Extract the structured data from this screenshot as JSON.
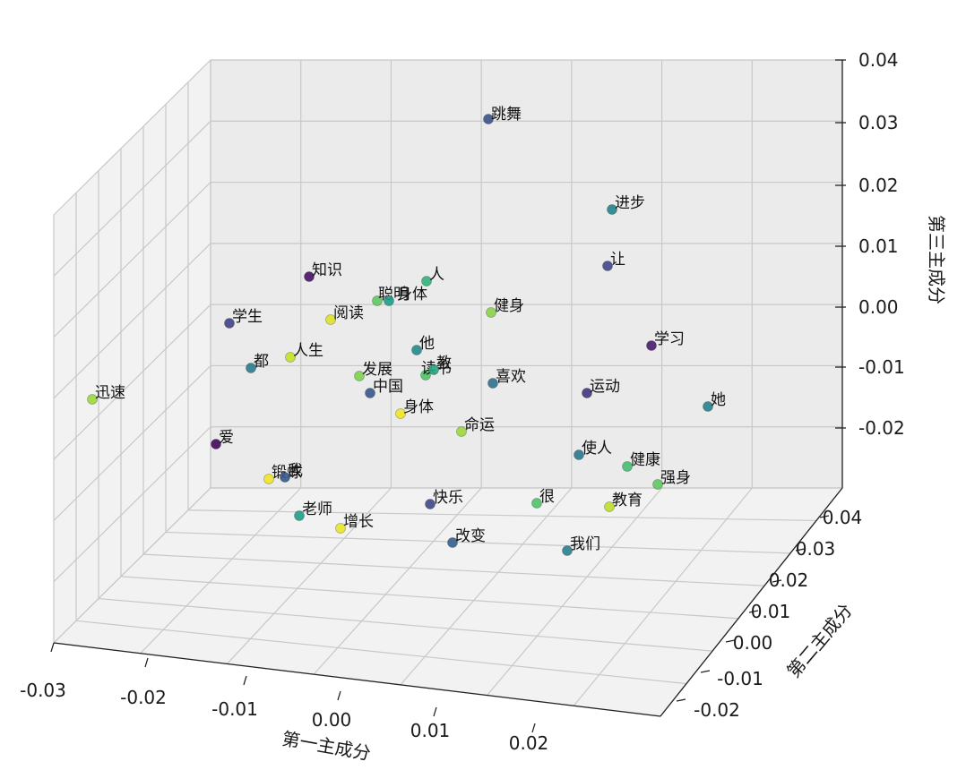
{
  "chart_data": {
    "type": "scatter",
    "projection": "3d",
    "colormap": "viridis",
    "xlabel": "第一主成分",
    "ylabel": "第二主成分",
    "zlabel": "第三主成分",
    "x_ticks": [
      "-0.03",
      "-0.02",
      "-0.01",
      "0.00",
      "0.01",
      "0.02"
    ],
    "y_ticks": [
      "-0.02",
      "-0.01",
      "0.00",
      "0.01",
      "0.02",
      "0.03",
      "0.04"
    ],
    "z_ticks": [
      "-0.02",
      "-0.01",
      "0.00",
      "0.01",
      "0.02",
      "0.03",
      "0.04"
    ],
    "grid": true,
    "points": [
      {
        "label": "跳舞",
        "z": 0.032,
        "c": 0.25
      },
      {
        "label": "进步",
        "z": 0.017,
        "c": 0.45
      },
      {
        "label": "让",
        "z": 0.007,
        "c": 0.22
      },
      {
        "label": "知识",
        "z": 0.005,
        "c": 0.05
      },
      {
        "label": "人",
        "z": 0.004,
        "c": 0.65
      },
      {
        "label": "聪明",
        "z": 0.001,
        "c": 0.75
      },
      {
        "label": "身体",
        "z": 0.001,
        "c": 0.55
      },
      {
        "label": "健身",
        "z": -0.001,
        "c": 0.82
      },
      {
        "label": "学生",
        "z": -0.004,
        "c": 0.2
      },
      {
        "label": "阅读",
        "z": -0.003,
        "c": 0.95
      },
      {
        "label": "他",
        "z": -0.009,
        "c": 0.48
      },
      {
        "label": "学习",
        "z": -0.009,
        "c": 0.08
      },
      {
        "label": "人生",
        "z": -0.01,
        "c": 0.92
      },
      {
        "label": "都",
        "z": -0.012,
        "c": 0.42
      },
      {
        "label": "发展",
        "z": -0.013,
        "c": 0.8
      },
      {
        "label": "读书",
        "z": -0.012,
        "c": 0.72
      },
      {
        "label": "教",
        "z": -0.011,
        "c": 0.6
      },
      {
        "label": "喜欢",
        "z": -0.014,
        "c": 0.38
      },
      {
        "label": "中国",
        "z": -0.015,
        "c": 0.28
      },
      {
        "label": "运动",
        "z": -0.016,
        "c": 0.15
      },
      {
        "label": "迅速",
        "z": -0.017,
        "c": 0.85
      },
      {
        "label": "她",
        "z": -0.018,
        "c": 0.45
      },
      {
        "label": "身体",
        "z": -0.018,
        "c": 0.98
      },
      {
        "label": "命运",
        "z": -0.021,
        "c": 0.85
      },
      {
        "label": "爱",
        "z": -0.023,
        "c": 0.02
      },
      {
        "label": "使人",
        "z": -0.024,
        "c": 0.4
      },
      {
        "label": "健康",
        "z": -0.026,
        "c": 0.7
      },
      {
        "label": "强身",
        "z": -0.028,
        "c": 0.75
      },
      {
        "label": "锻炼",
        "z": -0.028,
        "c": 0.98
      },
      {
        "label": "我",
        "z": -0.028,
        "c": 0.28
      },
      {
        "label": "快乐",
        "z": -0.032,
        "c": 0.22
      },
      {
        "label": "很",
        "z": -0.032,
        "c": 0.72
      },
      {
        "label": "教育",
        "z": -0.033,
        "c": 0.9
      },
      {
        "label": "老师",
        "z": -0.034,
        "c": 0.55
      },
      {
        "label": "增长",
        "z": -0.037,
        "c": 0.97
      },
      {
        "label": "改变",
        "z": -0.04,
        "c": 0.3
      },
      {
        "label": "我们",
        "z": -0.041,
        "c": 0.43
      }
    ]
  }
}
